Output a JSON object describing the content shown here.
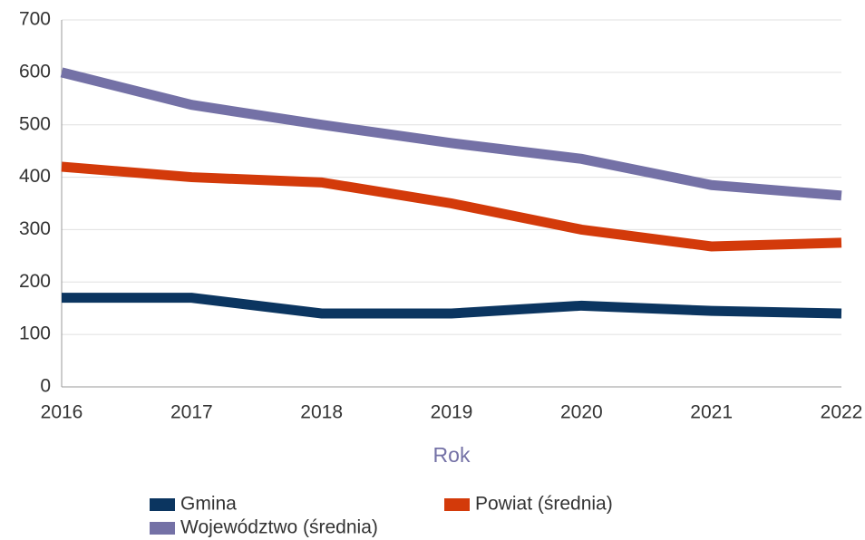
{
  "chart_data": {
    "type": "line",
    "xlabel": "Rok",
    "x": [
      2016,
      2017,
      2018,
      2019,
      2020,
      2021,
      2022
    ],
    "xlim": [
      2016,
      2022
    ],
    "xticks": [
      2016,
      2017,
      2018,
      2019,
      2020,
      2021,
      2022
    ],
    "ylim": [
      0,
      700
    ],
    "yticks": [
      0,
      100,
      200,
      300,
      400,
      500,
      600,
      700
    ],
    "grid": true,
    "legend": "bottom",
    "series": [
      {
        "name": "Gmina",
        "color": "#0b3560",
        "values": [
          170,
          170,
          140,
          140,
          155,
          145,
          140
        ]
      },
      {
        "name": "Powiat (średnia)",
        "color": "#d33a0a",
        "values": [
          420,
          400,
          390,
          350,
          300,
          268,
          275
        ]
      },
      {
        "name": "Województwo (średnia)",
        "color": "#7471a6",
        "values": [
          600,
          538,
          500,
          465,
          435,
          385,
          365
        ]
      }
    ]
  }
}
